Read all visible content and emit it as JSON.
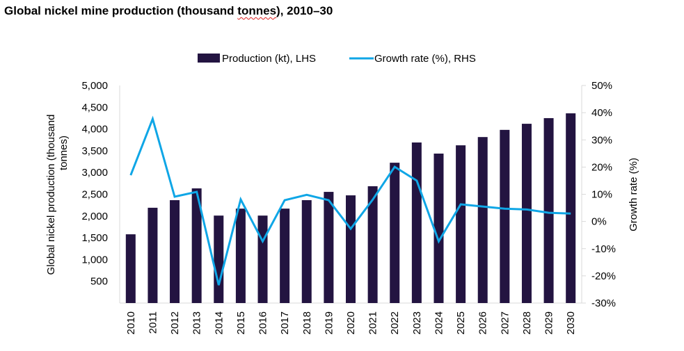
{
  "title": {
    "before": "Global nickel mine production (thousand ",
    "underlined": "tonnes",
    "after": "), 2010–30"
  },
  "colors": {
    "bar": "#231441",
    "line": "#0FA6E6",
    "axis": "#d9d9d9"
  },
  "chart_data": {
    "type": "bar",
    "title": "Global nickel mine production (thousand tonnes), 2010–30",
    "categories": [
      "2010",
      "2011",
      "2012",
      "2013",
      "2014",
      "2015",
      "2016",
      "2017",
      "2018",
      "2019",
      "2020",
      "2021",
      "2022",
      "2023",
      "2024",
      "2025",
      "2026",
      "2027",
      "2028",
      "2029",
      "2030"
    ],
    "series": [
      {
        "name": "Production (kt), LHS",
        "type": "bar",
        "axis": "left",
        "values": [
          1580,
          2190,
          2365,
          2635,
          2010,
          2170,
          2010,
          2170,
          2365,
          2555,
          2475,
          2685,
          3225,
          3690,
          3435,
          3625,
          3815,
          3980,
          4120,
          4250,
          4360
        ]
      },
      {
        "name": "Growth rate (%), RHS",
        "type": "line",
        "axis": "right",
        "values": [
          17.0,
          37.7,
          9.1,
          10.9,
          -23.4,
          8.1,
          -7.3,
          7.8,
          9.8,
          7.8,
          -2.7,
          8.0,
          20.1,
          15.0,
          -7.3,
          6.3,
          5.5,
          4.7,
          4.4,
          3.2,
          2.9
        ]
      }
    ],
    "xlabel": "",
    "ylabel": "Global nickel production (thousand tonnes)",
    "ylabel_lines": [
      "Global nickel production (thousand",
      "tonnes)"
    ],
    "y2label": "Growth rate (%)",
    "ylim": [
      0,
      5000
    ],
    "y2lim": [
      -30,
      50
    ],
    "yticks": [
      500,
      1000,
      1500,
      2000,
      2500,
      3000,
      3500,
      4000,
      4500,
      5000
    ],
    "ytick_labels": [
      "500",
      "1,000",
      "1,500",
      "2,000",
      "2,500",
      "3,000",
      "3,500",
      "4,000",
      "4,500",
      "5,000"
    ],
    "y2ticks": [
      -30,
      -20,
      -10,
      0,
      10,
      20,
      30,
      40,
      50
    ],
    "y2tick_labels": [
      "-30%",
      "-20%",
      "-10%",
      "0%",
      "10%",
      "20%",
      "30%",
      "40%",
      "50%"
    ],
    "legend": {
      "position": "top-center",
      "items": [
        "Production (kt), LHS",
        "Growth rate (%), RHS"
      ]
    },
    "grid": false
  }
}
